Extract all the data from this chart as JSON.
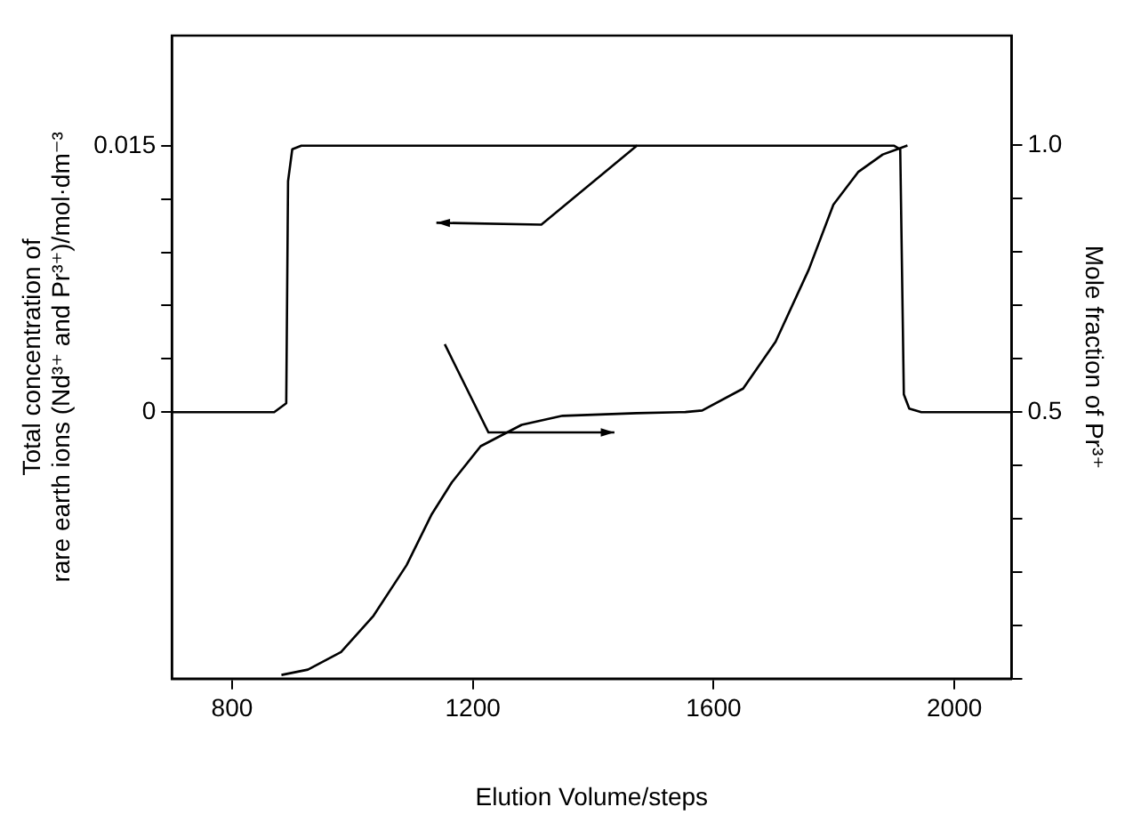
{
  "chart_data": {
    "type": "line",
    "xlabel": "Elution Volume/steps",
    "ylabel": "Total concentration of\nrare earth ions (Nd³⁺ and Pr³⁺)/mol·dm⁻³",
    "y2label": "Mole fraction of Pr³⁺",
    "xlim": [
      700,
      2095
    ],
    "xticks": [
      800,
      1200,
      1600,
      2000
    ],
    "ylim": [
      -0.015,
      0.0212
    ],
    "yticks": [
      {
        "value": 0,
        "label": "0"
      },
      {
        "value": 0.003,
        "label": null
      },
      {
        "value": 0.006,
        "label": null
      },
      {
        "value": 0.009,
        "label": null
      },
      {
        "value": 0.012,
        "label": null
      },
      {
        "value": 0.015,
        "label": "0.015"
      }
    ],
    "y2lim": [
      0,
      1.206
    ],
    "y2ticks": [
      {
        "value": 0,
        "label": null
      },
      {
        "value": 0.1,
        "label": null
      },
      {
        "value": 0.2,
        "label": null
      },
      {
        "value": 0.3,
        "label": null
      },
      {
        "value": 0.4,
        "label": null
      },
      {
        "value": 0.5,
        "label": "0.5"
      },
      {
        "value": 0.6,
        "label": null
      },
      {
        "value": 0.7,
        "label": null
      },
      {
        "value": 0.8,
        "label": null
      },
      {
        "value": 0.9,
        "label": null
      },
      {
        "value": 1.0,
        "label": "1.0"
      }
    ],
    "grid": false,
    "legend": false,
    "marker": "none",
    "line_style": "solid",
    "series": [
      {
        "color": "#000000",
        "x": [
          700,
          870,
          890,
          893,
          900,
          915,
          1900,
          1910,
          1916,
          1925,
          1945,
          2095
        ],
        "values": [
          0,
          0,
          0.0005,
          0.013,
          0.0148,
          0.015,
          0.015,
          0.0148,
          0.001,
          0.0002,
          0,
          0
        ]
      },
      {
        "color": "#000000",
        "axis": "y2",
        "x": [
          882,
          926,
          981,
          1035,
          1090,
          1131,
          1165,
          1213,
          1281,
          1349,
          1472,
          1553,
          1581,
          1649,
          1703,
          1758,
          1799,
          1840,
          1881,
          1905,
          1922
        ],
        "values": [
          0.007,
          0.017,
          0.05,
          0.118,
          0.213,
          0.307,
          0.368,
          0.436,
          0.476,
          0.493,
          0.498,
          0.5,
          0.503,
          0.544,
          0.632,
          0.767,
          0.889,
          0.95,
          0.983,
          0.993,
          1.0
        ]
      }
    ]
  }
}
